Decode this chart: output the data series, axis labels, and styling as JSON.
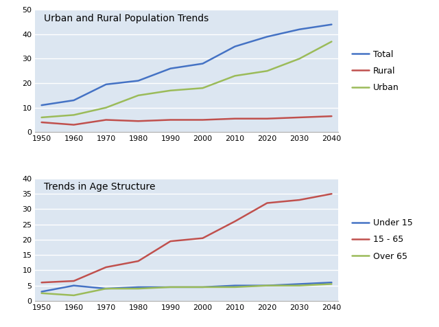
{
  "years": [
    1950,
    1960,
    1970,
    1980,
    1990,
    2000,
    2010,
    2020,
    2030,
    2040
  ],
  "chart1_title": "Urban and Rural Population Trends",
  "chart1_ylim": [
    0,
    50
  ],
  "chart1_yticks": [
    0,
    10,
    20,
    30,
    40,
    50
  ],
  "chart1_series": {
    "Total": {
      "values": [
        11,
        13,
        19.5,
        21,
        26,
        28,
        35,
        39,
        42,
        44
      ],
      "color": "#4472C4",
      "linewidth": 1.8
    },
    "Rural": {
      "values": [
        4,
        3,
        5,
        4.5,
        5,
        5,
        5.5,
        5.5,
        6,
        6.5
      ],
      "color": "#C0504D",
      "linewidth": 1.8
    },
    "Urban": {
      "values": [
        6,
        7,
        10,
        15,
        17,
        18,
        23,
        25,
        30,
        37
      ],
      "color": "#9BBB59",
      "linewidth": 1.8
    }
  },
  "chart2_title": "Trends in Age Structure",
  "chart2_ylim": [
    0,
    40
  ],
  "chart2_yticks": [
    0,
    5,
    10,
    15,
    20,
    25,
    30,
    35,
    40
  ],
  "chart2_series": {
    "Under 15": {
      "values": [
        3,
        5,
        4,
        4.5,
        4.5,
        4.5,
        5,
        5,
        5.5,
        6
      ],
      "color": "#4472C4",
      "linewidth": 1.8
    },
    "15 - 65": {
      "values": [
        6,
        6.5,
        11,
        13,
        19.5,
        20.5,
        26,
        32,
        33,
        35
      ],
      "color": "#C0504D",
      "linewidth": 1.8
    },
    "Over 65": {
      "values": [
        2.5,
        1.8,
        4,
        4,
        4.5,
        4.5,
        4.5,
        5,
        5,
        5.5
      ],
      "color": "#9BBB59",
      "linewidth": 1.8
    }
  },
  "fig_background": "#FFFFFF",
  "plot_background": "#DCE6F1",
  "grid_color": "#FFFFFF",
  "tick_fontsize": 8,
  "legend_fontsize": 9,
  "title_fontsize": 10
}
